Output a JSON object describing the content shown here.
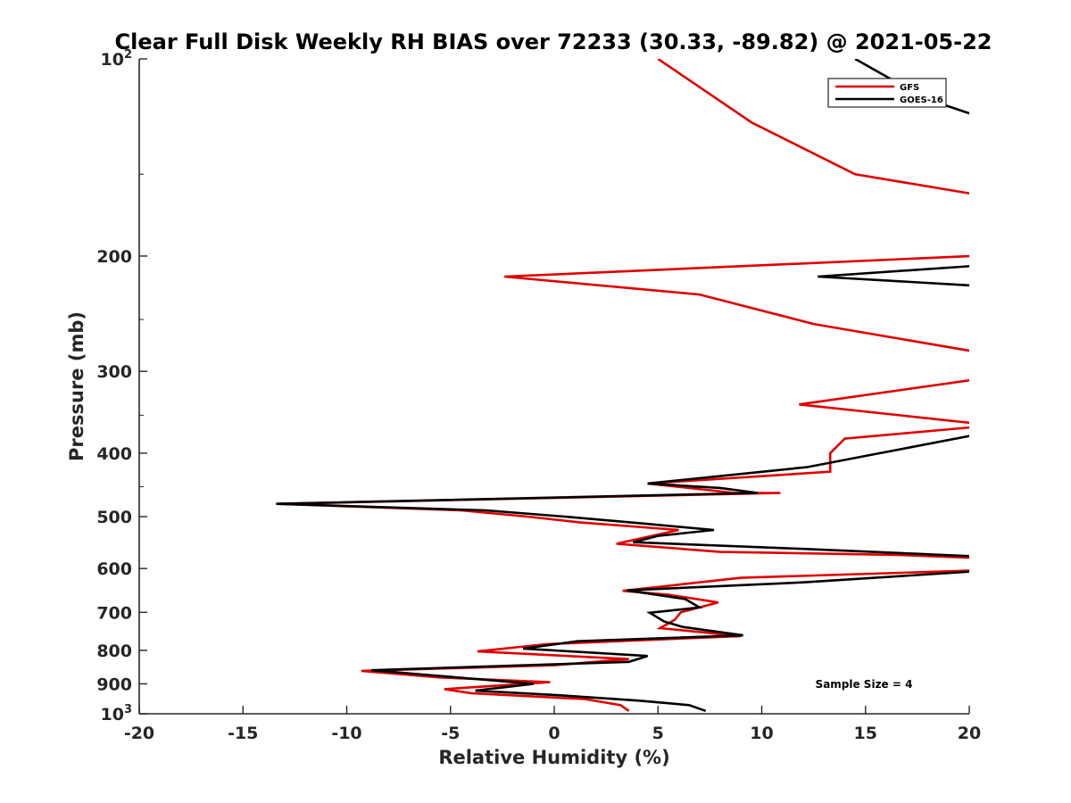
{
  "chart_data": {
    "type": "line",
    "title": "Clear Full Disk Weekly RH BIAS over 72233 (30.33, -89.82) @ 2021-05-22",
    "xlabel": "Relative Humidity (%)",
    "ylabel": "Pressure (mb)",
    "xlim": [
      -20,
      20
    ],
    "ylim": [
      100,
      1000
    ],
    "y_scale": "log",
    "y_reversed": true,
    "grid": false,
    "legend_position": "top-right",
    "x_ticks": [
      -20,
      -15,
      -10,
      -5,
      0,
      5,
      10,
      15,
      20
    ],
    "x_tick_labels": [
      "-20",
      "-15",
      "-10",
      "-5",
      "0",
      "5",
      "10",
      "15",
      "20"
    ],
    "y_ticks": [
      100,
      200,
      300,
      400,
      500,
      600,
      700,
      800,
      900,
      1000
    ],
    "y_tick_labels": [
      {
        "base": "10",
        "sup": "2"
      },
      {
        "base": "200",
        "sup": ""
      },
      {
        "base": "300",
        "sup": ""
      },
      {
        "base": "400",
        "sup": ""
      },
      {
        "base": "500",
        "sup": ""
      },
      {
        "base": "600",
        "sup": ""
      },
      {
        "base": "700",
        "sup": ""
      },
      {
        "base": "800",
        "sup": ""
      },
      {
        "base": "900",
        "sup": ""
      },
      {
        "base": "10",
        "sup": "3"
      }
    ],
    "annotation": "Sample Size = 4",
    "series": [
      {
        "name": "GFS",
        "color": "#e00000",
        "points": [
          [
            5,
            100
          ],
          [
            9.5,
            125
          ],
          [
            14.5,
            150
          ],
          [
            20.3,
            161
          ],
          [
            20.1,
            200
          ],
          [
            -2.4,
            215
          ],
          [
            7,
            229
          ],
          [
            12.5,
            254
          ],
          [
            20.3,
            280
          ],
          [
            20.2,
            309
          ],
          [
            11.8,
            337
          ],
          [
            20.2,
            360
          ],
          [
            20.2,
            365
          ],
          [
            14,
            380
          ],
          [
            13.3,
            400
          ],
          [
            13.3,
            427
          ],
          [
            4.5,
            445
          ],
          [
            8.7,
            460
          ],
          [
            10.9,
            460
          ],
          [
            -13.3,
            478
          ],
          [
            -4.5,
            489
          ],
          [
            -1.3,
            500
          ],
          [
            1.2,
            510
          ],
          [
            6,
            524
          ],
          [
            3,
            550
          ],
          [
            8,
            566
          ],
          [
            16.5,
            572
          ],
          [
            20.3,
            578
          ],
          [
            20.4,
            604
          ],
          [
            9,
            620
          ],
          [
            3.3,
            649
          ],
          [
            5.5,
            658
          ],
          [
            7.9,
            676
          ],
          [
            6.1,
            700
          ],
          [
            5.8,
            719
          ],
          [
            5.1,
            740
          ],
          [
            9,
            761
          ],
          [
            -0.4,
            783
          ],
          [
            -3.7,
            803
          ],
          [
            3.6,
            825
          ],
          [
            0,
            843
          ],
          [
            -9.3,
            860
          ],
          [
            -5.5,
            880
          ],
          [
            -0.2,
            895
          ],
          [
            -5.3,
            917
          ],
          [
            -4,
            930
          ],
          [
            1.5,
            950
          ],
          [
            3.2,
            970
          ],
          [
            3.6,
            990
          ]
        ]
      },
      {
        "name": "GOES-16",
        "color": "#000000",
        "points": [
          [
            14.5,
            100
          ],
          [
            17.9,
            115
          ],
          [
            20.3,
            122
          ],
          [
            20.3,
            207
          ],
          [
            12.7,
            215
          ],
          [
            20.3,
            222
          ],
          [
            20.3,
            375
          ],
          [
            15.7,
            400
          ],
          [
            12.2,
            420
          ],
          [
            4.5,
            445
          ],
          [
            8,
            452
          ],
          [
            9.8,
            460
          ],
          [
            -13.4,
            478
          ],
          [
            -3.3,
            489
          ],
          [
            0.5,
            500
          ],
          [
            4.2,
            512
          ],
          [
            7.7,
            524
          ],
          [
            5,
            535
          ],
          [
            3.8,
            547
          ],
          [
            12,
            560
          ],
          [
            16.5,
            568
          ],
          [
            20.3,
            575
          ],
          [
            20.3,
            606
          ],
          [
            12,
            630
          ],
          [
            3.5,
            648
          ],
          [
            6.3,
            668
          ],
          [
            7,
            688
          ],
          [
            4.6,
            701
          ],
          [
            5.3,
            723
          ],
          [
            6.2,
            737
          ],
          [
            9.1,
            759
          ],
          [
            1.1,
            775
          ],
          [
            -1.5,
            795
          ],
          [
            4.5,
            816
          ],
          [
            3.6,
            833
          ],
          [
            -8.8,
            858
          ],
          [
            -6.2,
            872
          ],
          [
            -1,
            900
          ],
          [
            -3.8,
            922
          ],
          [
            0.3,
            937
          ],
          [
            4.1,
            955
          ],
          [
            6.5,
            970
          ],
          [
            7.3,
            990
          ]
        ]
      }
    ]
  }
}
